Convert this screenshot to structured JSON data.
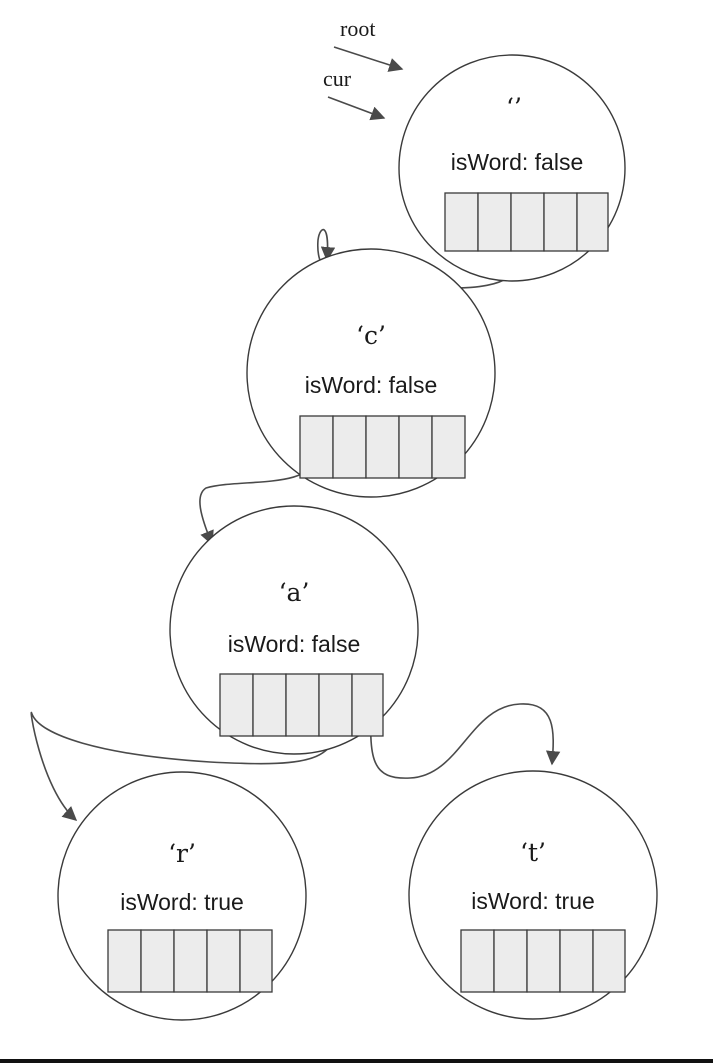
{
  "pointers": {
    "root": "root",
    "cur": "cur"
  },
  "nodes": [
    {
      "id": "root",
      "char": "‘’",
      "isword_text": "isWord: false"
    },
    {
      "id": "c",
      "char": "‘c’",
      "isword_text": "isWord: false"
    },
    {
      "id": "a",
      "char": "‘a’",
      "isword_text": "isWord: false"
    },
    {
      "id": "r",
      "char": "‘r’",
      "isword_text": "isWord: true"
    },
    {
      "id": "t",
      "char": "‘t’",
      "isword_text": "isWord: true"
    }
  ],
  "children_slots_per_node": 5,
  "colors": {
    "cell_fill": "#ececec",
    "stroke": "#3a3a3a"
  }
}
